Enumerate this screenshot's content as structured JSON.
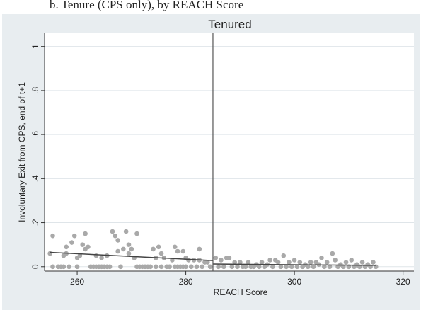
{
  "header_text": "b. Tenure (CPS only), by REACH Score",
  "chart_data": {
    "type": "scatter",
    "title": "Tenured",
    "xlabel": "REACH Score",
    "ylabel": "Involuntary Exit from CPS, end of t+1",
    "xlim": [
      254,
      322
    ],
    "ylim": [
      -0.02,
      1.06
    ],
    "xticks": [
      {
        "v": 260,
        "label": "260"
      },
      {
        "v": 280,
        "label": "280"
      },
      {
        "v": 300,
        "label": "300"
      },
      {
        "v": 320,
        "label": "320"
      }
    ],
    "yticks": [
      {
        "v": 0,
        "label": "0"
      },
      {
        "v": 0.2,
        "label": ".2"
      },
      {
        "v": 0.4,
        "label": ".4"
      },
      {
        "v": 0.6,
        "label": ".6"
      },
      {
        "v": 0.8,
        "label": ".8"
      },
      {
        "v": 1,
        "label": "1"
      }
    ],
    "cutoff": 285,
    "grid": true,
    "colors": {
      "background": "#e8edf0",
      "plot": "#ffffff",
      "grid": "#dfe5e9",
      "points": "#a9a9a9",
      "fit": "#444444",
      "cutoff": "#555555",
      "axis": "#333333"
    },
    "points": [
      [
        255.0,
        0.06
      ],
      [
        255.5,
        0.14
      ],
      [
        255.5,
        0.0
      ],
      [
        256.5,
        0.0
      ],
      [
        257.0,
        0.0
      ],
      [
        257.5,
        0.05
      ],
      [
        257.5,
        0.0
      ],
      [
        258.0,
        0.09
      ],
      [
        258.0,
        0.06
      ],
      [
        258.5,
        0.0
      ],
      [
        259.0,
        0.11
      ],
      [
        259.5,
        0.14
      ],
      [
        260.0,
        0.04
      ],
      [
        260.0,
        0.0
      ],
      [
        260.5,
        0.05
      ],
      [
        261.0,
        0.1
      ],
      [
        261.5,
        0.08
      ],
      [
        261.5,
        0.15
      ],
      [
        262.0,
        0.09
      ],
      [
        262.5,
        0.0
      ],
      [
        263.0,
        0.0
      ],
      [
        263.5,
        0.0
      ],
      [
        263.5,
        0.05
      ],
      [
        264.0,
        0.0
      ],
      [
        264.5,
        0.04
      ],
      [
        264.5,
        0.0
      ],
      [
        265.0,
        0.0
      ],
      [
        265.5,
        0.05
      ],
      [
        265.5,
        0.0
      ],
      [
        266.0,
        0.0
      ],
      [
        266.5,
        0.16
      ],
      [
        267.0,
        0.14
      ],
      [
        267.5,
        0.12
      ],
      [
        267.5,
        0.07
      ],
      [
        268.0,
        0.0
      ],
      [
        268.5,
        0.08
      ],
      [
        269.0,
        0.16
      ],
      [
        269.5,
        0.1
      ],
      [
        269.5,
        0.06
      ],
      [
        270.0,
        0.08
      ],
      [
        270.5,
        0.04
      ],
      [
        271.0,
        0.15
      ],
      [
        271.0,
        0.0
      ],
      [
        271.5,
        0.0
      ],
      [
        272.0,
        0.0
      ],
      [
        272.5,
        0.0
      ],
      [
        273.0,
        0.0
      ],
      [
        273.5,
        0.0
      ],
      [
        274.0,
        0.08
      ],
      [
        274.5,
        0.04
      ],
      [
        274.5,
        0.0
      ],
      [
        275.0,
        0.09
      ],
      [
        275.5,
        0.06
      ],
      [
        275.5,
        0.0
      ],
      [
        276.0,
        0.04
      ],
      [
        276.5,
        0.0
      ],
      [
        277.0,
        0.0
      ],
      [
        277.5,
        0.03
      ],
      [
        278.0,
        0.09
      ],
      [
        278.0,
        0.0
      ],
      [
        278.5,
        0.07
      ],
      [
        278.5,
        0.0
      ],
      [
        279.0,
        0.0
      ],
      [
        279.5,
        0.07
      ],
      [
        279.5,
        0.0
      ],
      [
        280.0,
        0.04
      ],
      [
        280.0,
        0.0
      ],
      [
        280.5,
        0.03
      ],
      [
        281.0,
        0.0
      ],
      [
        281.5,
        0.03
      ],
      [
        282.0,
        0.0
      ],
      [
        282.5,
        0.08
      ],
      [
        282.5,
        0.03
      ],
      [
        283.0,
        0.0
      ],
      [
        283.5,
        0.02
      ],
      [
        284.0,
        0.02
      ],
      [
        284.5,
        0.0
      ],
      [
        285.5,
        0.04
      ],
      [
        286.0,
        0.0
      ],
      [
        286.5,
        0.03
      ],
      [
        287.0,
        0.0
      ],
      [
        287.5,
        0.04
      ],
      [
        288.0,
        0.04
      ],
      [
        288.5,
        0.0
      ],
      [
        289.0,
        0.02
      ],
      [
        289.5,
        0.0
      ],
      [
        290.0,
        0.02
      ],
      [
        290.5,
        0.0
      ],
      [
        291.0,
        0.0
      ],
      [
        291.5,
        0.02
      ],
      [
        292.0,
        0.0
      ],
      [
        292.5,
        0.0
      ],
      [
        293.0,
        0.01
      ],
      [
        293.5,
        0.0
      ],
      [
        294.0,
        0.02
      ],
      [
        294.5,
        0.0
      ],
      [
        295.0,
        0.01
      ],
      [
        295.5,
        0.03
      ],
      [
        296.0,
        0.0
      ],
      [
        296.5,
        0.03
      ],
      [
        297.0,
        0.02
      ],
      [
        297.5,
        0.0
      ],
      [
        298.0,
        0.05
      ],
      [
        298.5,
        0.0
      ],
      [
        299.0,
        0.02
      ],
      [
        299.5,
        0.0
      ],
      [
        300.0,
        0.03
      ],
      [
        300.5,
        0.0
      ],
      [
        301.0,
        0.02
      ],
      [
        301.5,
        0.0
      ],
      [
        302.0,
        0.01
      ],
      [
        302.5,
        0.0
      ],
      [
        303.0,
        0.02
      ],
      [
        303.5,
        0.0
      ],
      [
        304.0,
        0.02
      ],
      [
        304.5,
        0.01
      ],
      [
        305.0,
        0.04
      ],
      [
        305.5,
        0.0
      ],
      [
        306.0,
        0.02
      ],
      [
        306.5,
        0.0
      ],
      [
        307.0,
        0.06
      ],
      [
        307.5,
        0.03
      ],
      [
        308.0,
        0.0
      ],
      [
        308.5,
        0.01
      ],
      [
        309.0,
        0.0
      ],
      [
        309.5,
        0.02
      ],
      [
        310.0,
        0.0
      ],
      [
        310.5,
        0.03
      ],
      [
        311.0,
        0.0
      ],
      [
        311.5,
        0.01
      ],
      [
        312.0,
        0.0
      ],
      [
        312.5,
        0.02
      ],
      [
        313.0,
        0.0
      ],
      [
        313.5,
        0.01
      ],
      [
        314.0,
        0.0
      ],
      [
        314.5,
        0.02
      ],
      [
        315.0,
        0.0
      ]
    ],
    "fit_left": [
      [
        255,
        0.065
      ],
      [
        285,
        0.028
      ]
    ],
    "fit_right": [
      [
        285,
        0.012
      ],
      [
        315,
        0.006
      ]
    ]
  }
}
